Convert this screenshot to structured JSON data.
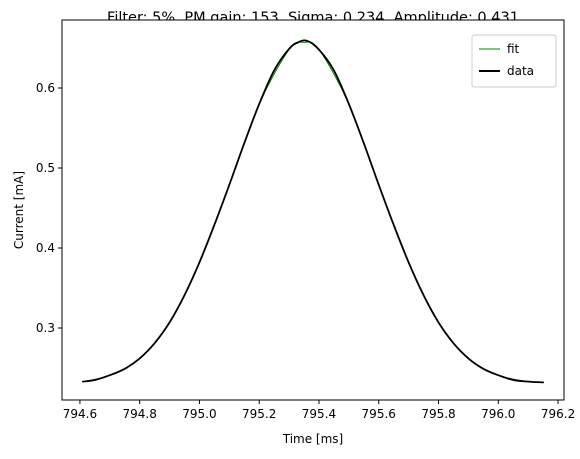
{
  "chart_data": {
    "type": "line",
    "title": "Filter: 5%, PM gain: 153, Sigma: 0.234, Amplitude: 0.431",
    "xlabel": "Time [ms]",
    "ylabel": "Current [mA]",
    "xlim": [
      794.54,
      796.22
    ],
    "ylim": [
      0.21,
      0.685
    ],
    "xticks": [
      794.6,
      794.8,
      795.0,
      795.2,
      795.4,
      795.6,
      795.8,
      796.0,
      796.2
    ],
    "xtick_labels": [
      "794.6",
      "794.8",
      "795.0",
      "795.2",
      "795.4",
      "795.6",
      "795.8",
      "796.0",
      "796.2"
    ],
    "yticks": [
      0.3,
      0.4,
      0.5,
      0.6
    ],
    "ytick_labels": [
      "0.3",
      "0.4",
      "0.5",
      "0.6"
    ],
    "grid": false,
    "legend_position": "top-right",
    "series": [
      {
        "name": "fit",
        "color": "#008000",
        "style": "thin",
        "x": [
          794.61,
          794.7,
          794.8,
          794.9,
          795.0,
          795.1,
          795.2,
          795.3,
          795.35,
          795.4,
          795.5,
          795.6,
          795.7,
          795.8,
          795.9,
          796.0,
          796.1,
          796.15
        ],
        "y": [
          0.233,
          0.241,
          0.262,
          0.307,
          0.382,
          0.479,
          0.58,
          0.648,
          0.657,
          0.648,
          0.58,
          0.479,
          0.382,
          0.307,
          0.262,
          0.241,
          0.233,
          0.232
        ]
      },
      {
        "name": "data",
        "color": "#000000",
        "style": "thick",
        "x": [
          794.61,
          794.65,
          794.7,
          794.75,
          794.8,
          794.85,
          794.9,
          794.95,
          795.0,
          795.05,
          795.1,
          795.15,
          795.2,
          795.25,
          795.3,
          795.33,
          795.36,
          795.4,
          795.45,
          795.5,
          795.55,
          795.6,
          795.65,
          795.7,
          795.75,
          795.8,
          795.85,
          795.9,
          795.95,
          796.0,
          796.05,
          796.1,
          796.15
        ],
        "y": [
          0.233,
          0.235,
          0.241,
          0.249,
          0.262,
          0.281,
          0.307,
          0.341,
          0.382,
          0.429,
          0.479,
          0.531,
          0.58,
          0.622,
          0.649,
          0.657,
          0.659,
          0.648,
          0.622,
          0.58,
          0.531,
          0.479,
          0.429,
          0.382,
          0.341,
          0.307,
          0.281,
          0.262,
          0.249,
          0.241,
          0.235,
          0.233,
          0.232
        ]
      }
    ]
  }
}
